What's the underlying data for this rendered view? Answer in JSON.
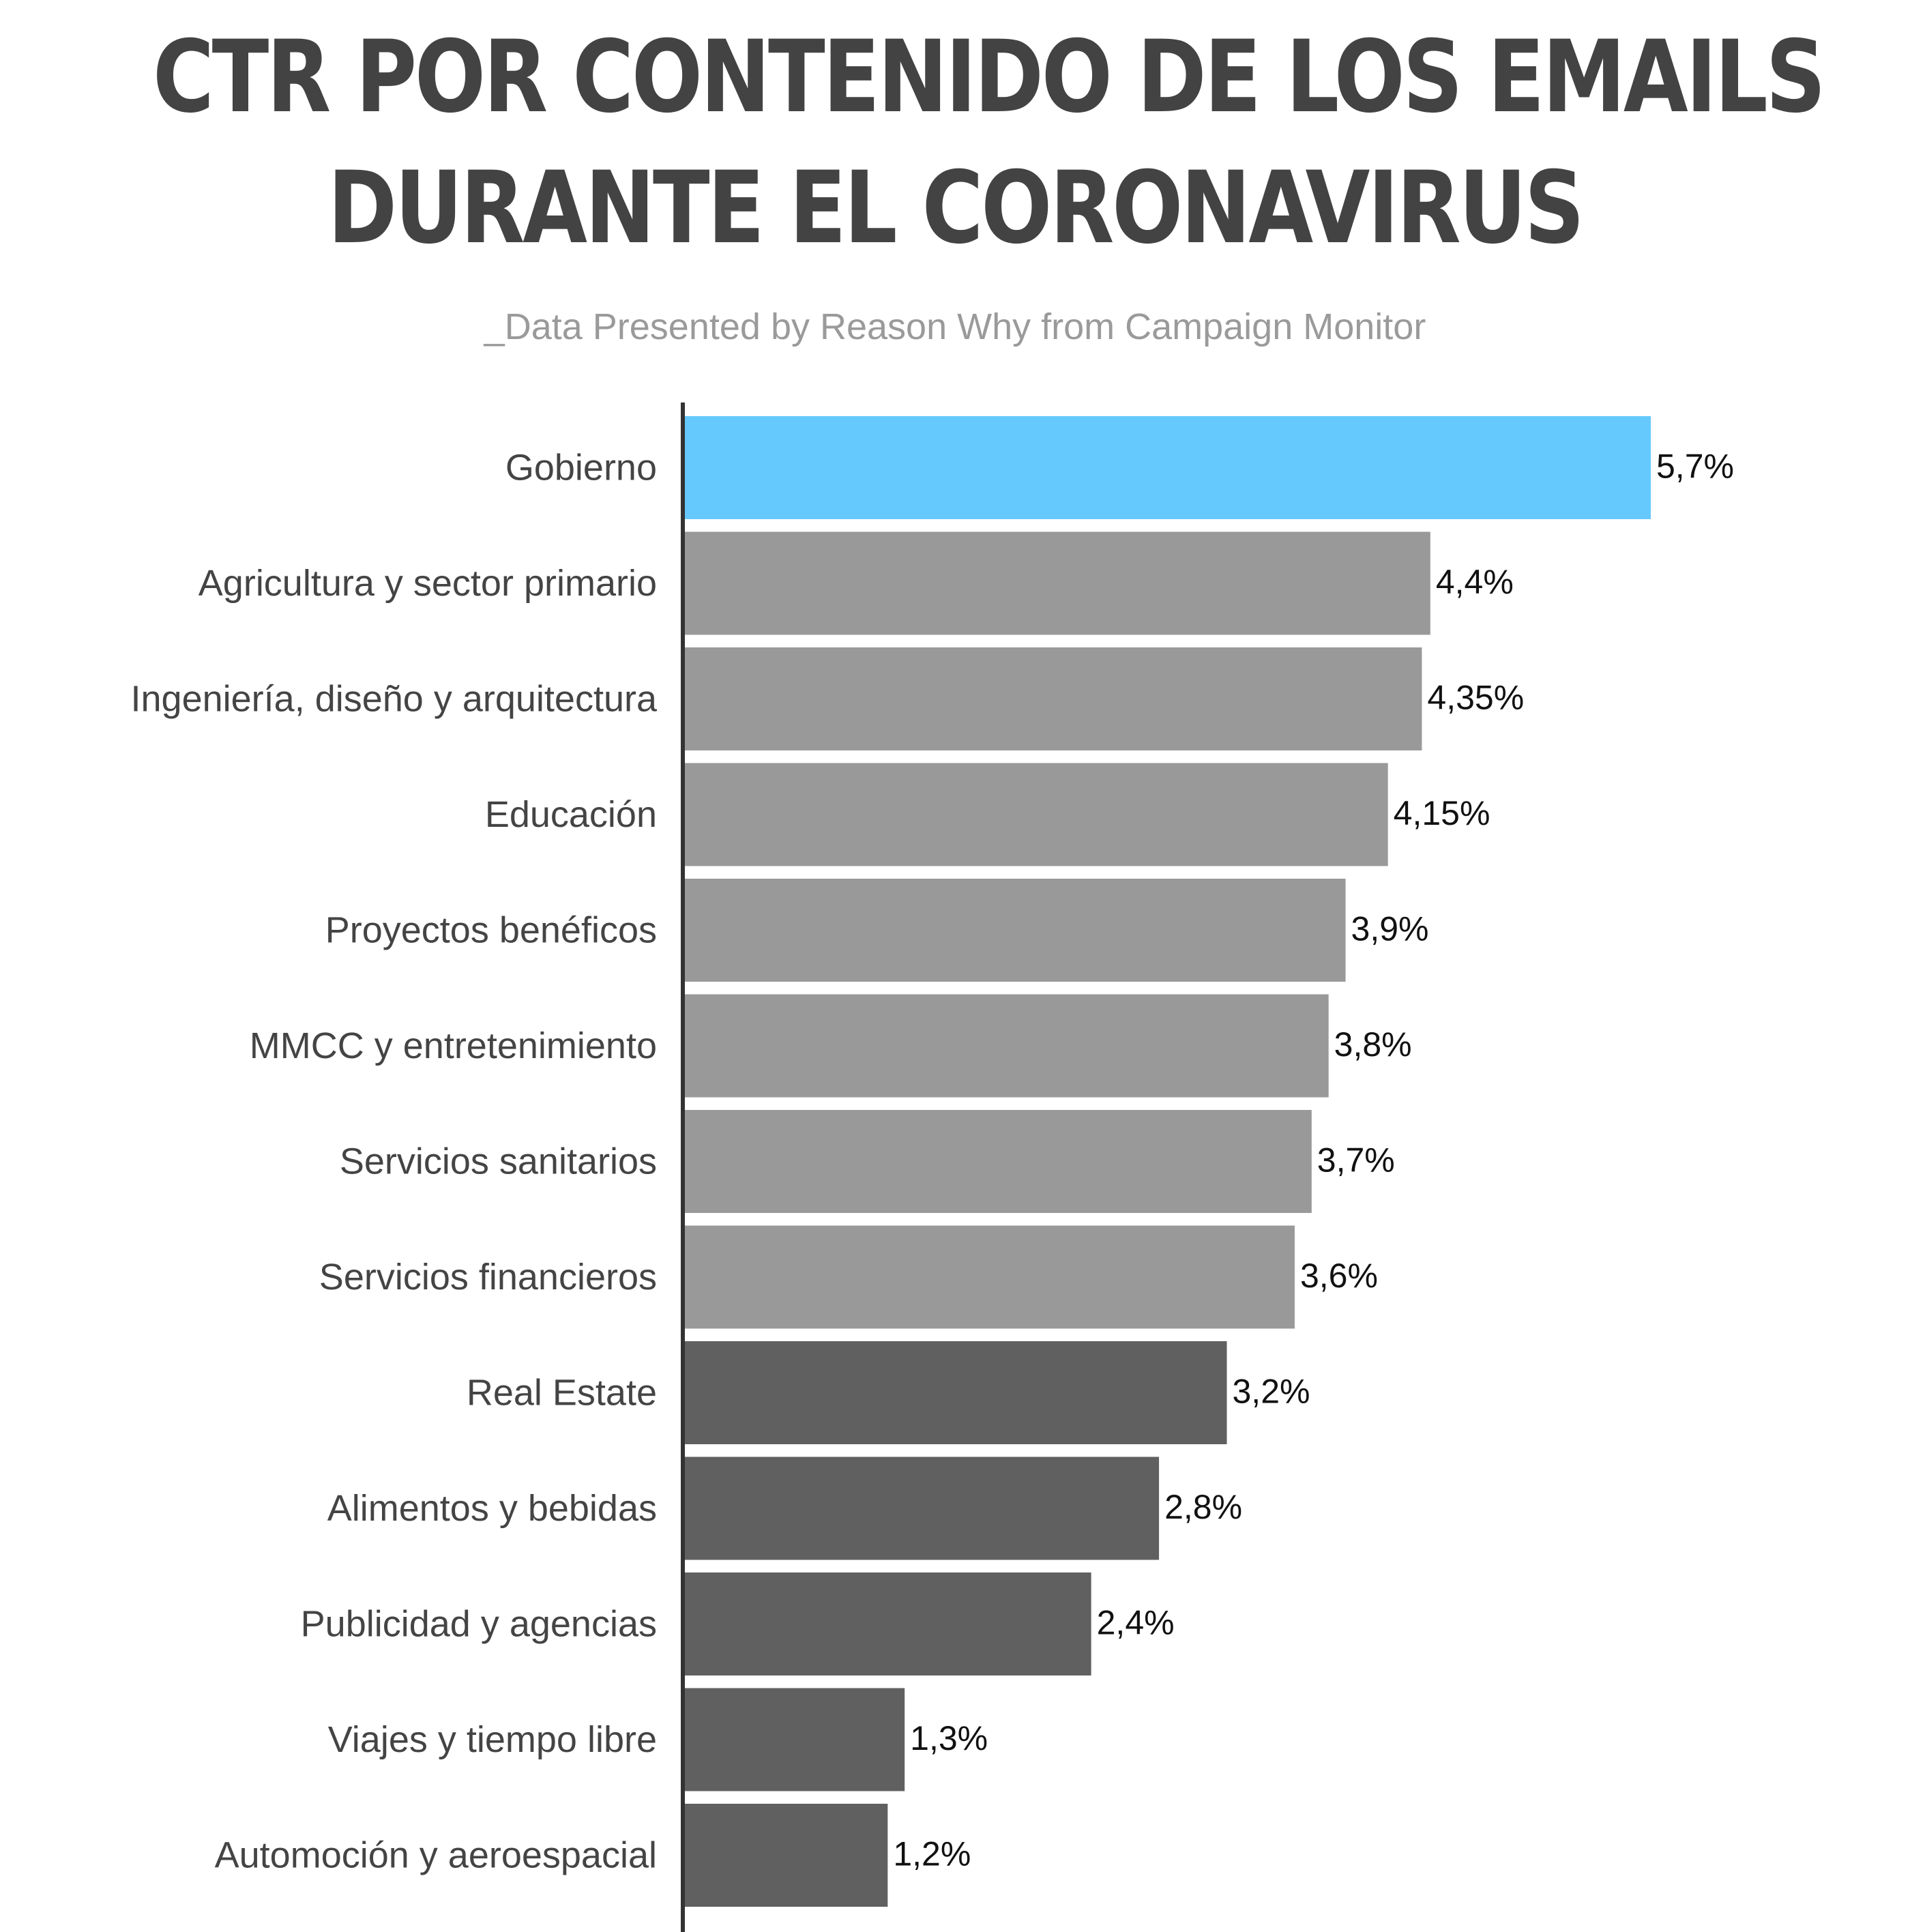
{
  "title": {
    "line1": "CTR POR CONTENIDO DE LOS EMAILS",
    "line2": "DURANTE EL CORONAVIRUS"
  },
  "subtitle": "_Data Presented by Reason Why from Campaign Monitor",
  "colors": {
    "highlight": "#66c9fd",
    "light_gray": "#999999",
    "dark_gray": "#606060",
    "axis": "#333333",
    "title": "#434343",
    "subtitle": "#9a9a9a"
  },
  "chart_data": {
    "type": "bar",
    "orientation": "horizontal",
    "title": "CTR POR CONTENIDO DE LOS EMAILS DURANTE EL CORONAVIRUS",
    "subtitle": "_Data Presented by Reason Why from Campaign Monitor",
    "xlabel": "",
    "ylabel": "",
    "xlim": [
      0,
      5.7
    ],
    "grid": false,
    "legend": "none",
    "categories": [
      "Gobierno",
      "Agricultura y sector primario",
      "Ingeniería, diseño y arquitectura",
      "Educación",
      "Proyectos benéficos",
      "MMCC y entretenimiento",
      "Servicios sanitarios",
      "Servicios financieros",
      "Real Estate",
      "Alimentos y bebidas",
      "Publicidad y agencias",
      "Viajes y tiempo libre",
      "Automoción y aeroespacial"
    ],
    "values": [
      5.7,
      4.4,
      4.35,
      4.15,
      3.9,
      3.8,
      3.7,
      3.6,
      3.2,
      2.8,
      2.4,
      1.3,
      1.2
    ],
    "value_labels": [
      "5,7%",
      "4,4%",
      "4,35%",
      "4,15%",
      "3,9%",
      "3,8%",
      "3,7%",
      "3,6%",
      "3,2%",
      "2,8%",
      "2,4%",
      "1,3%",
      "1,2%"
    ],
    "bar_colors": [
      "#66c9fd",
      "#999999",
      "#999999",
      "#999999",
      "#999999",
      "#999999",
      "#999999",
      "#999999",
      "#606060",
      "#606060",
      "#606060",
      "#606060",
      "#606060"
    ]
  }
}
